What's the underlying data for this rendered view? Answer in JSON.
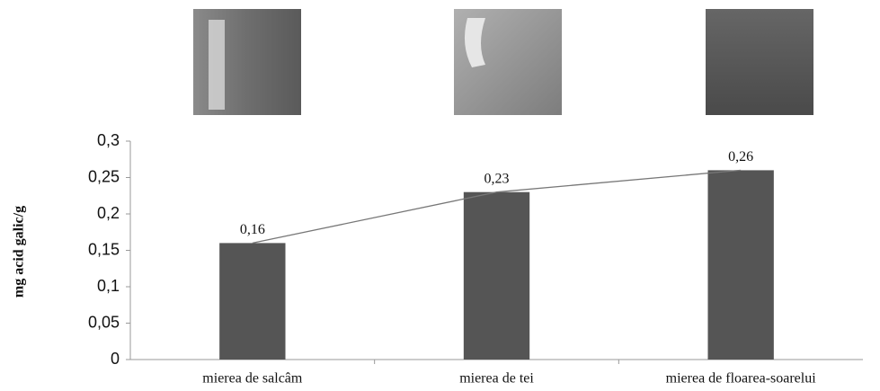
{
  "chart_data": {
    "type": "bar",
    "y_label": "mg acid galic/g",
    "categories": [
      "mierea de salcâm",
      "mierea de tei",
      "mierea de floarea-soarelui"
    ],
    "values": [
      0.16,
      0.23,
      0.26
    ],
    "value_labels": [
      "0,16",
      "0,23",
      "0,26"
    ],
    "color": "#555555",
    "line_color": "#777777",
    "ylim": [
      0,
      0.3
    ],
    "yticks": [
      0,
      {
        "value": 0.05,
        "label": "0,05"
      },
      {
        "value": 0.1,
        "label": "0,1"
      },
      {
        "value": 0.15,
        "label": "0,15"
      },
      {
        "value": 0.2,
        "label": "0,2"
      },
      {
        "value": 0.25,
        "label": "0,25"
      },
      {
        "value": 0.3,
        "label": "0,3"
      }
    ]
  }
}
